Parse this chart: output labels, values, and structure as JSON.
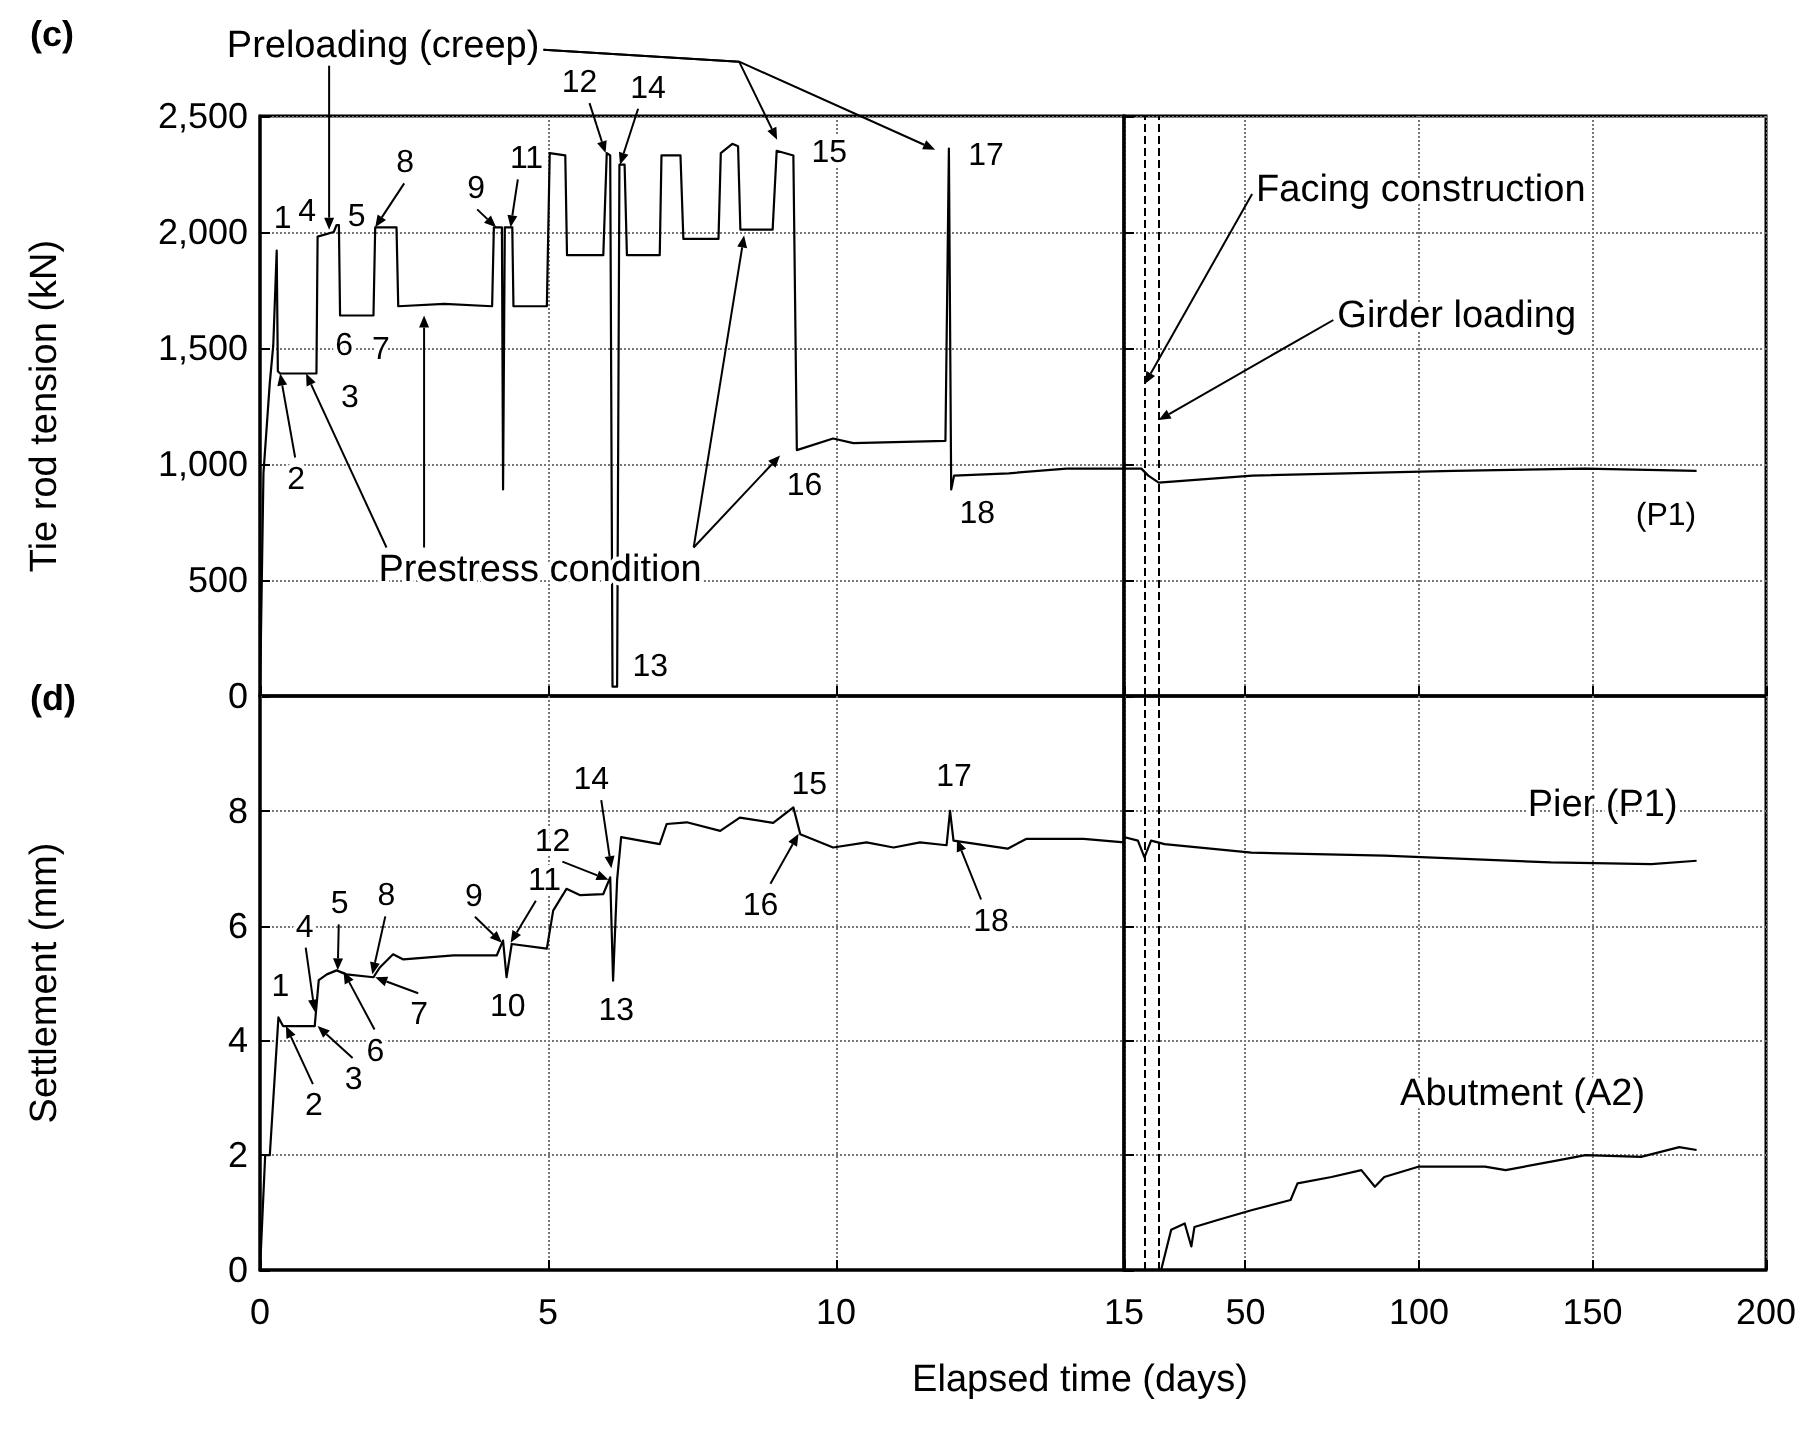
{
  "chart_data": [
    {
      "type": "line",
      "title": "(c)",
      "ylabel": "Tie rod tension (kN)",
      "xlim": [
        0,
        15
      ],
      "ylim": [
        0,
        2500
      ],
      "xticks": [
        0,
        5,
        10
      ],
      "yticks": [
        0,
        500,
        {
          "value": 1000,
          "label": "1,000"
        },
        {
          "value": 1500,
          "label": "1,500"
        },
        {
          "value": 2000,
          "label": "2,000"
        },
        {
          "value": 2500,
          "label": "2,500"
        }
      ],
      "tick_labels": "y",
      "grid": true,
      "series": [
        {
          "color": "#000000",
          "x": [
            0,
            0.06,
            0.17,
            0.23,
            0.29,
            0.31,
            0.35,
            0.98,
            1.0,
            1.28,
            1.33,
            1.37,
            1.39,
            1.97,
            2.0,
            2.37,
            2.4,
            3.2,
            4.03,
            4.06,
            4.2,
            4.22,
            4.25,
            4.38,
            4.4,
            4.98,
            5.03,
            5.3,
            5.33,
            5.96,
            6.02,
            6.08,
            6.12,
            6.2,
            6.24,
            6.33,
            6.37,
            6.94,
            6.97,
            7.3,
            7.35,
            7.96,
            8.0,
            8.2,
            8.3,
            8.34,
            8.9,
            8.97,
            9.26,
            9.32,
            9.95,
            10.3,
            11.9,
            11.96,
            12.0,
            12.05,
            13,
            14,
            15
          ],
          "values": [
            0,
            960,
            1350,
            1510,
            1920,
            1400,
            1390,
            1390,
            1980,
            2000,
            2030,
            2030,
            1640,
            1640,
            2020,
            2020,
            1680,
            1690,
            1680,
            2020,
            2020,
            890,
            2020,
            2020,
            1680,
            1680,
            2340,
            2330,
            1900,
            1900,
            2340,
            2330,
            40,
            40,
            2290,
            2290,
            1900,
            1900,
            2330,
            2330,
            1970,
            1970,
            2340,
            2380,
            2370,
            2010,
            2010,
            2350,
            2330,
            1060,
            1110,
            1090,
            1100,
            2360,
            890,
            950,
            960,
            980,
            980
          ]
        }
      ],
      "annotations": [
        {
          "text": "1",
          "x": 0.29,
          "y": 1925
        },
        {
          "text": "2",
          "x": 0.35,
          "y": 1390
        },
        "3",
        {
          "text": "4",
          "x": 1.2,
          "y": 2010
        },
        {
          "text": "5",
          "x": 1.33,
          "y": 2030
        },
        {
          "text": "6",
          "x": 1.6,
          "y": 1640
        },
        {
          "text": "7",
          "x": 2.1,
          "y": 1680
        },
        {
          "text": "8",
          "x": 2.0,
          "y": 2020
        },
        {
          "text": "9",
          "x": 4.1,
          "y": 2020
        },
        {
          "text": "11",
          "x": 4.35,
          "y": 2020
        },
        {
          "text": "12",
          "x": 6.0,
          "y": 2340
        },
        {
          "text": "13",
          "x": 6.15,
          "y": 40
        },
        {
          "text": "14",
          "x": 6.25,
          "y": 2290
        },
        {
          "text": "15",
          "x": 9.26,
          "y": 2330
        },
        {
          "text": "16",
          "x": 9.35,
          "y": 1060
        },
        {
          "text": "17",
          "x": 11.98,
          "y": 2360
        },
        {
          "text": "18",
          "x": 12.0,
          "y": 890
        },
        {
          "text": "Preloading (creep)",
          "x": 1.2,
          "y": 2010
        },
        {
          "text": "Prestress condition",
          "x": 0.8,
          "y": 1390
        }
      ]
    },
    {
      "type": "line",
      "xlim": [
        15,
        200
      ],
      "ylim": [
        0,
        2500
      ],
      "xticks": [
        15,
        50,
        100,
        150,
        200
      ],
      "yticks": [
        0,
        500,
        1000,
        1500,
        2000,
        2500
      ],
      "tick_labels": false,
      "grid": true,
      "series": [
        {
          "color": "#000000",
          "x": [
            15,
            20,
            22,
            25,
            52,
            110,
            148,
            180
          ],
          "values": [
            980,
            980,
            950,
            920,
            950,
            970,
            980,
            970
          ]
        }
      ],
      "ref_lines": [
        {
          "axis": "x",
          "value": 21,
          "label": "Facing construction",
          "line_style": "dashed"
        },
        {
          "axis": "x",
          "value": 25,
          "label": "Girder loading",
          "line_style": "dashed"
        }
      ],
      "annotations": [
        "(P1)"
      ]
    },
    {
      "type": "line",
      "title": "(d)",
      "xlabel": "Elapsed time (days)",
      "ylabel": "Settlement (mm)",
      "xlim": [
        0,
        15
      ],
      "ylim": [
        0,
        10
      ],
      "xticks": [
        0,
        5,
        10
      ],
      "yticks": [
        0,
        2,
        4,
        6,
        8
      ],
      "grid": true,
      "series": [
        {
          "color": "#000000",
          "x": [
            0,
            0.09,
            0.17,
            0.32,
            0.4,
            0.95,
            1.02,
            1.16,
            1.33,
            1.5,
            1.97,
            2.08,
            2.31,
            2.49,
            3.36,
            4.11,
            4.22,
            4.28,
            4.37,
            4.98,
            5.09,
            5.32,
            5.56,
            5.96,
            6.08,
            6.13,
            6.2,
            6.27,
            6.94,
            7.06,
            7.41,
            7.99,
            8.33,
            8.91,
            9.26,
            9.38,
            9.95,
            10.53,
            11.0,
            11.46,
            11.92,
            11.98,
            12.04,
            12.98,
            13.3,
            14.3,
            15
          ],
          "values": [
            0,
            2.0,
            2.0,
            4.4,
            4.25,
            4.25,
            5.05,
            5.15,
            5.22,
            5.15,
            5.1,
            5.27,
            5.5,
            5.41,
            5.48,
            5.48,
            5.74,
            5.1,
            5.68,
            5.6,
            6.26,
            6.64,
            6.53,
            6.55,
            6.84,
            5.04,
            6.8,
            7.54,
            7.42,
            7.77,
            7.8,
            7.65,
            7.88,
            7.79,
            8.06,
            7.59,
            7.36,
            7.45,
            7.36,
            7.45,
            7.4,
            8.0,
            7.48,
            7.34,
            7.51,
            7.51,
            7.45
          ]
        }
      ],
      "annotations": [
        {
          "text": "1",
          "x": 0.32,
          "y": 4.4
        },
        {
          "text": "2",
          "x": 0.45,
          "y": 4.25
        },
        {
          "text": "3",
          "x": 1.0,
          "y": 4.25
        },
        {
          "text": "4",
          "x": 0.95,
          "y": 4.5
        },
        {
          "text": "5",
          "x": 1.35,
          "y": 5.22
        },
        {
          "text": "6",
          "x": 1.45,
          "y": 5.2
        },
        {
          "text": "7",
          "x": 2.0,
          "y": 5.1
        },
        {
          "text": "8",
          "x": 1.95,
          "y": 5.15
        },
        {
          "text": "9",
          "x": 4.2,
          "y": 5.7
        },
        {
          "text": "10",
          "x": 4.3,
          "y": 5.1
        },
        {
          "text": "11",
          "x": 4.35,
          "y": 5.7
        },
        {
          "text": "12",
          "x": 6.05,
          "y": 6.8
        },
        {
          "text": "13",
          "x": 6.15,
          "y": 5.0
        },
        {
          "text": "14",
          "x": 6.1,
          "y": 7.0
        },
        {
          "text": "15",
          "x": 9.26,
          "y": 8.06
        },
        {
          "text": "16",
          "x": 9.35,
          "y": 7.6
        },
        {
          "text": "17",
          "x": 11.98,
          "y": 8.0
        },
        {
          "text": "18",
          "x": 12.1,
          "y": 7.5
        }
      ]
    },
    {
      "type": "line",
      "xlim": [
        15,
        200
      ],
      "ylim": [
        0,
        10
      ],
      "xticks": [
        15,
        50,
        100,
        150,
        200
      ],
      "yticks": [
        0,
        2,
        4,
        6,
        8
      ],
      "tick_labels": "x",
      "grid": true,
      "series": [
        {
          "name": "Pier (P1)",
          "color": "#000000",
          "x": [
            15.2,
            19,
            20.9,
            22.8,
            26.7,
            51.7,
            90,
            138,
            167,
            180
          ],
          "values": [
            7.54,
            7.48,
            7.19,
            7.48,
            7.42,
            7.27,
            7.22,
            7.1,
            7.07,
            7.13
          ]
        },
        {
          "name": "Abutment (A2)",
          "color": "#000000",
          "x": [
            15.2,
            25.7,
            28.6,
            32.5,
            34.4,
            35.3,
            42,
            51.7,
            63,
            65,
            74.8,
            83.4,
            87.3,
            90,
            99.8,
            119,
            125,
            140,
            148,
            164,
            175,
            180
          ],
          "values": [
            0,
            0,
            0.7,
            0.81,
            0.41,
            0.75,
            0.87,
            1.04,
            1.22,
            1.51,
            1.62,
            1.74,
            1.45,
            1.62,
            1.8,
            1.8,
            1.74,
            1.91,
            2.0,
            1.97,
            2.14,
            2.09
          ]
        }
      ],
      "ref_lines": [
        {
          "axis": "x",
          "value": 21,
          "line_style": "dashed"
        },
        {
          "axis": "x",
          "value": 25,
          "line_style": "dashed"
        }
      ]
    }
  ]
}
